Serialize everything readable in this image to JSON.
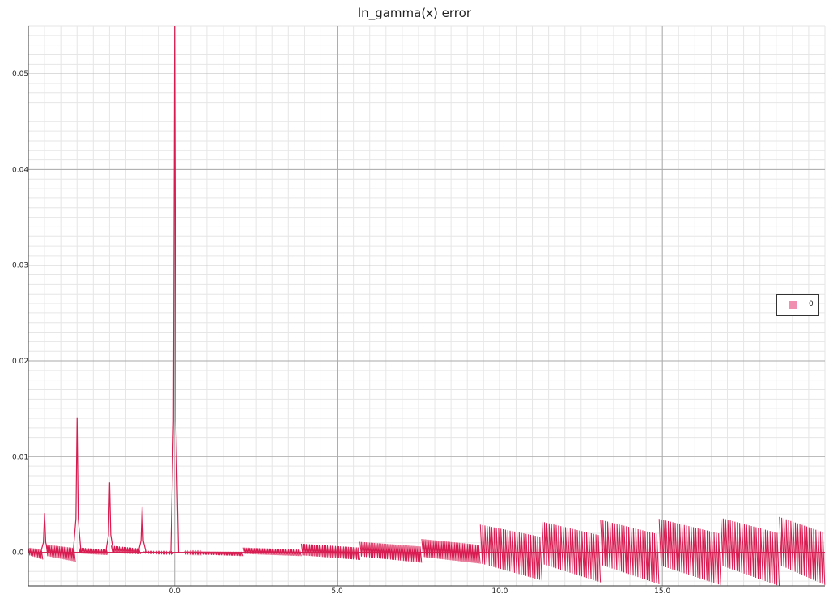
{
  "chart_data": {
    "type": "line",
    "title": "ln_gamma(x) error",
    "xlabel": "",
    "ylabel": "",
    "xlim": [
      -4.5,
      20.0
    ],
    "ylim": [
      -0.0035,
      0.055
    ],
    "x_ticks": [
      0.0,
      5.0,
      10.0,
      15.0
    ],
    "x_tick_labels": [
      "0.0",
      "5.0",
      "10.0",
      "15.0"
    ],
    "y_ticks": [
      0.0,
      0.01,
      0.02,
      0.03,
      0.04,
      0.05
    ],
    "y_tick_labels": [
      "0.0",
      "0.01",
      "0.02",
      "0.03",
      "0.04",
      "0.05"
    ],
    "grid": true,
    "legend_position": "right",
    "colors": {
      "line": "#d81b50",
      "fill": "#f08fb0",
      "grid_major": "#aaaaaa",
      "grid_minor": "#e6e6e6",
      "axis": "#333333"
    },
    "series": [
      {
        "name": "0",
        "spikes": [
          {
            "x": -4.0,
            "y": 0.0041
          },
          {
            "x": -3.0,
            "y": 0.0141
          },
          {
            "x": -2.0,
            "y": 0.0073
          },
          {
            "x": -1.0,
            "y": 0.0048
          },
          {
            "x": 0.0,
            "y": 0.055
          }
        ],
        "segments": [
          {
            "x0": -4.5,
            "x1": -4.05,
            "min": -0.0008,
            "max": 0.0005
          },
          {
            "x0": -3.95,
            "x1": -3.05,
            "min": -0.001,
            "max": 0.0008
          },
          {
            "x0": -2.95,
            "x1": -2.05,
            "min": -0.0003,
            "max": 0.0005
          },
          {
            "x0": -1.95,
            "x1": -1.05,
            "min": -0.0002,
            "max": 0.0007
          },
          {
            "x0": -0.95,
            "x1": -0.05,
            "min": -0.0002,
            "max": 0.0001
          },
          {
            "x0": 0.3,
            "x1": 2.1,
            "min": -0.0004,
            "max": 0.0001
          },
          {
            "x0": 2.1,
            "x1": 3.9,
            "min": -0.0004,
            "max": 0.0005
          },
          {
            "x0": 3.9,
            "x1": 5.7,
            "min": -0.0008,
            "max": 0.0009
          },
          {
            "x0": 5.7,
            "x1": 7.6,
            "min": -0.0011,
            "max": 0.0011
          },
          {
            "x0": 7.6,
            "x1": 9.4,
            "min": -0.0012,
            "max": 0.0014
          },
          {
            "x0": 9.4,
            "x1": 11.3,
            "min": -0.003,
            "max": 0.0029
          },
          {
            "x0": 11.3,
            "x1": 13.1,
            "min": -0.0032,
            "max": 0.0032
          },
          {
            "x0": 13.1,
            "x1": 14.9,
            "min": -0.0034,
            "max": 0.0034
          },
          {
            "x0": 14.9,
            "x1": 16.8,
            "min": -0.0035,
            "max": 0.0035
          },
          {
            "x0": 16.8,
            "x1": 18.6,
            "min": -0.0036,
            "max": 0.0036
          },
          {
            "x0": 18.6,
            "x1": 20.0,
            "min": -0.0035,
            "max": 0.0037
          }
        ]
      }
    ]
  }
}
